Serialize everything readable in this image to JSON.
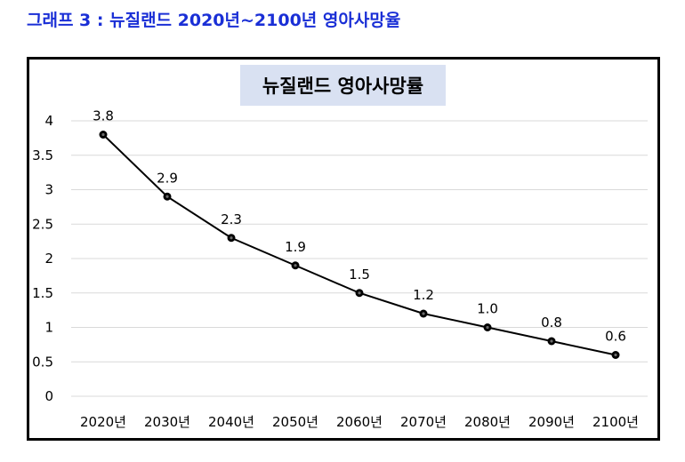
{
  "heading": "그래프 3 : 뉴질랜드 2020년~2100년 영아사망율",
  "colors": {
    "heading": "#1a2fd6",
    "title_box_bg": "#d9e1f2",
    "line": "#000000",
    "grid": "#d9d9d9",
    "frame": "#000000"
  },
  "chart_data": {
    "type": "line",
    "title": "뉴질랜드 영아사망률",
    "categories": [
      "2020년",
      "2030년",
      "2040년",
      "2050년",
      "2060년",
      "2070년",
      "2080년",
      "2090년",
      "2100년"
    ],
    "series": [
      {
        "values": [
          3.8,
          2.9,
          2.3,
          1.9,
          1.5,
          1.2,
          1.0,
          0.8,
          0.6
        ],
        "labels": [
          "3.8",
          "2.9",
          "2.3",
          "1.9",
          "1.5",
          "1.2",
          "1.0",
          "0.8",
          "0.6"
        ]
      }
    ],
    "ylim": [
      0,
      4
    ],
    "yticks": [
      "0",
      "0.5",
      "1",
      "1.5",
      "2",
      "2.5",
      "3",
      "3.5",
      "4"
    ],
    "grid": true,
    "markers": "circle",
    "data_labels": "above"
  }
}
